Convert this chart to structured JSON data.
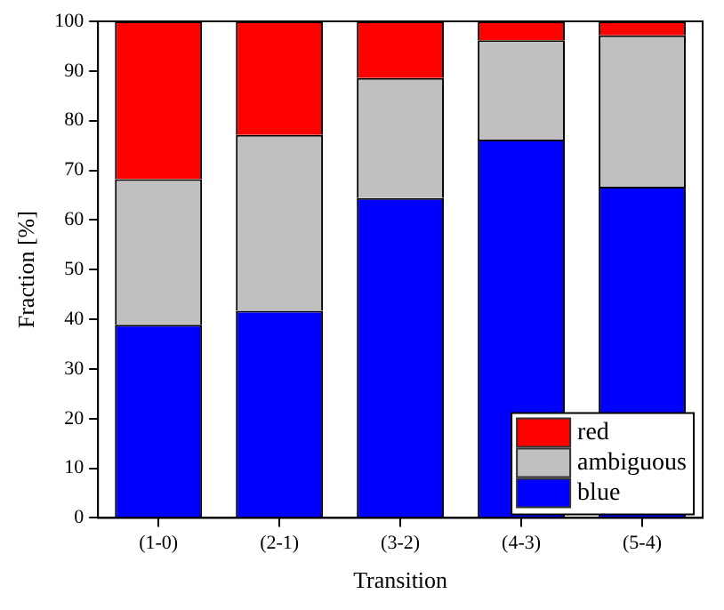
{
  "chart_data": {
    "type": "bar",
    "stacked": true,
    "xlabel": "Transition",
    "ylabel": "Fraction [%]",
    "categories": [
      "(1-0)",
      "(2-1)",
      "(3-2)",
      "(4-3)",
      "(5-4)"
    ],
    "series": [
      {
        "name": "blue",
        "color": "#0000ff",
        "values": [
          38.9,
          41.7,
          64.4,
          76.2,
          66.7
        ]
      },
      {
        "name": "ambiguous",
        "color": "#c0c0c0",
        "values": [
          29.3,
          35.4,
          24.2,
          20.0,
          30.5
        ]
      },
      {
        "name": "red",
        "color": "#ff0000",
        "values": [
          31.8,
          22.9,
          11.4,
          3.8,
          2.8
        ]
      }
    ],
    "ylim": [
      0,
      100
    ],
    "yticks": [
      0,
      10,
      20,
      30,
      40,
      50,
      60,
      70,
      80,
      90,
      100
    ],
    "grid": false,
    "legend": "bottom right"
  }
}
